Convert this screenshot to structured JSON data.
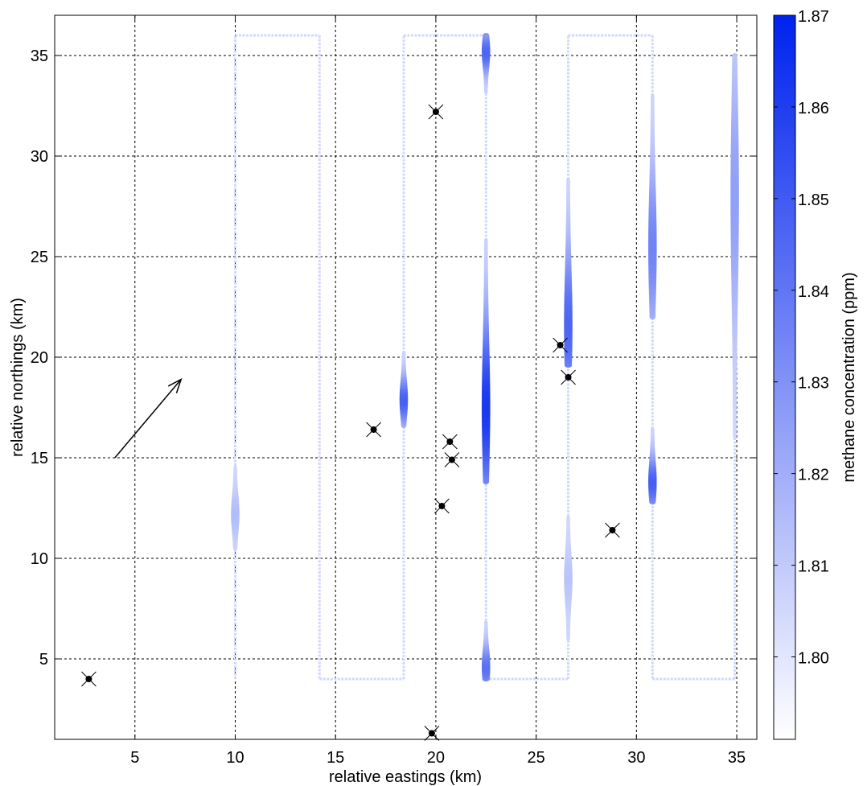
{
  "chart_data": {
    "type": "scatter",
    "title": "",
    "xlabel": "relative eastings (km)",
    "ylabel": "relative northings (km)",
    "colorbar_label": "methane concentration (ppm)",
    "xlim": [
      1,
      36
    ],
    "ylim": [
      1,
      37
    ],
    "xticks": [
      5,
      10,
      15,
      20,
      25,
      30,
      35
    ],
    "yticks": [
      5,
      10,
      15,
      20,
      25,
      30,
      35
    ],
    "clim": [
      1.791,
      1.87
    ],
    "colorbar_ticks": [
      1.8,
      1.81,
      1.82,
      1.83,
      1.84,
      1.85,
      1.86,
      1.87
    ],
    "colormap": {
      "low": "#ffffff",
      "high": "#0022ee"
    },
    "grid": true,
    "background_value": 1.805,
    "flight_track": [
      [
        10,
        4
      ],
      [
        10,
        36
      ],
      [
        14.2,
        36
      ],
      [
        14.2,
        4
      ],
      [
        18.4,
        4
      ],
      [
        18.4,
        36
      ],
      [
        22.5,
        36
      ],
      [
        22.5,
        4
      ],
      [
        26.6,
        4
      ],
      [
        26.6,
        36
      ],
      [
        30.8,
        36
      ],
      [
        30.8,
        4
      ],
      [
        34.9,
        4
      ],
      [
        34.9,
        35
      ]
    ],
    "plumes": [
      {
        "x": 18.4,
        "y0": 16.6,
        "y1": 20.2,
        "peak_y": 17.9,
        "peak": 1.848
      },
      {
        "x": 22.5,
        "y0": 13.8,
        "y1": 25.8,
        "peak_y": 17.5,
        "peak": 1.862
      },
      {
        "x": 22.5,
        "y0": 33.2,
        "y1": 36.0,
        "peak_y": 35.2,
        "peak": 1.846
      },
      {
        "x": 22.5,
        "y0": 4.0,
        "y1": 6.8,
        "peak_y": 4.6,
        "peak": 1.842
      },
      {
        "x": 26.6,
        "y0": 19.6,
        "y1": 28.8,
        "peak_y": 21.6,
        "peak": 1.846
      },
      {
        "x": 26.6,
        "y0": 6.0,
        "y1": 12.0,
        "peak_y": 9.0,
        "peak": 1.812
      },
      {
        "x": 30.8,
        "y0": 22.0,
        "y1": 33.0,
        "peak_y": 25.5,
        "peak": 1.835
      },
      {
        "x": 30.8,
        "y0": 12.8,
        "y1": 16.4,
        "peak_y": 13.8,
        "peak": 1.848
      },
      {
        "x": 34.9,
        "y0": 16.0,
        "y1": 35.0,
        "peak_y": 28.0,
        "peak": 1.825
      },
      {
        "x": 10,
        "y0": 10.5,
        "y1": 14.5,
        "peak_y": 12.2,
        "peak": 1.815
      }
    ],
    "sources": [
      {
        "x": 2.7,
        "y": 4.0
      },
      {
        "x": 16.9,
        "y": 16.4
      },
      {
        "x": 20.0,
        "y": 32.2
      },
      {
        "x": 20.3,
        "y": 12.6
      },
      {
        "x": 20.7,
        "y": 15.8
      },
      {
        "x": 20.8,
        "y": 14.9
      },
      {
        "x": 19.8,
        "y": 1.3
      },
      {
        "x": 26.2,
        "y": 20.6
      },
      {
        "x": 26.6,
        "y": 19.0
      },
      {
        "x": 28.8,
        "y": 11.4
      }
    ],
    "wind_arrow": {
      "from": [
        4.0,
        15.0
      ],
      "to": [
        7.3,
        18.9
      ]
    }
  }
}
